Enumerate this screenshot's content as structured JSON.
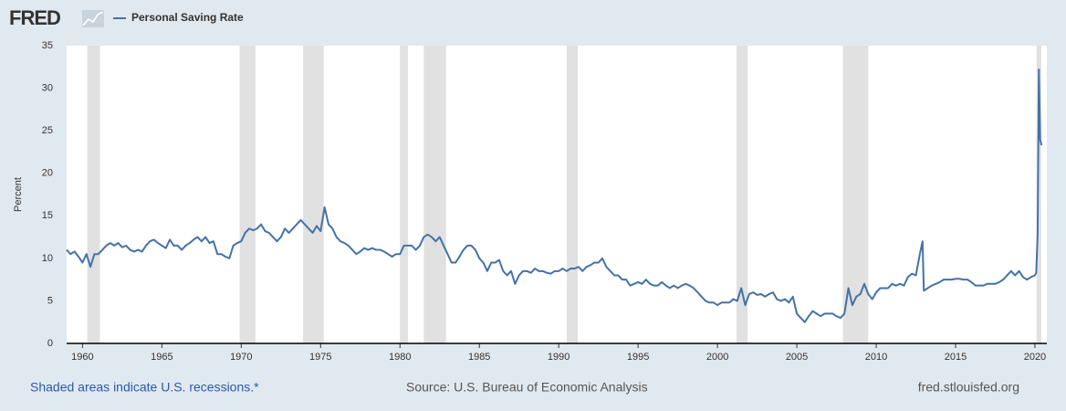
{
  "chart_data": {
    "type": "line",
    "logo": "FRED",
    "title": "Personal Saving Rate",
    "ylabel": "Percent",
    "footer_left": "Shaded areas indicate U.S. recessions.*",
    "footer_source": "Source: U.S. Bureau of Economic Analysis",
    "footer_right": "fred.stlouisfed.org",
    "xlim": [
      1959,
      2020.75
    ],
    "xticks": [
      1960,
      1965,
      1970,
      1975,
      1980,
      1985,
      1990,
      1995,
      2000,
      2005,
      2010,
      2015,
      2020
    ],
    "ylim": [
      0,
      35
    ],
    "yticks": [
      0,
      5,
      10,
      15,
      20,
      25,
      30,
      35
    ],
    "grid": false,
    "recession_color": "#e1e1e1",
    "recessions": [
      [
        1960.3,
        1961.1
      ],
      [
        1969.9,
        1970.9
      ],
      [
        1973.9,
        1975.2
      ],
      [
        1980.0,
        1980.5
      ],
      [
        1981.5,
        1982.9
      ],
      [
        1990.5,
        1991.2
      ],
      [
        2001.2,
        2001.9
      ],
      [
        2007.9,
        2009.5
      ],
      [
        2020.1,
        2020.4
      ]
    ],
    "series": [
      {
        "name": "Personal Saving Rate",
        "color": "#4572a7",
        "x": [
          1959,
          1959.25,
          1959.5,
          1959.75,
          1960,
          1960.25,
          1960.5,
          1960.75,
          1961,
          1961.25,
          1961.5,
          1961.75,
          1962,
          1962.25,
          1962.5,
          1962.75,
          1963,
          1963.25,
          1963.5,
          1963.75,
          1964,
          1964.25,
          1964.5,
          1964.75,
          1965,
          1965.25,
          1965.5,
          1965.75,
          1966,
          1966.25,
          1966.5,
          1966.75,
          1967,
          1967.25,
          1967.5,
          1967.75,
          1968,
          1968.25,
          1968.5,
          1968.75,
          1969,
          1969.25,
          1969.5,
          1969.75,
          1970,
          1970.25,
          1970.5,
          1970.75,
          1971,
          1971.25,
          1971.5,
          1971.75,
          1972,
          1972.25,
          1972.5,
          1972.75,
          1973,
          1973.25,
          1973.5,
          1973.75,
          1974,
          1974.25,
          1974.5,
          1974.75,
          1975,
          1975.25,
          1975.5,
          1975.75,
          1976,
          1976.25,
          1976.5,
          1976.75,
          1977,
          1977.25,
          1977.5,
          1977.75,
          1978,
          1978.25,
          1978.5,
          1978.75,
          1979,
          1979.25,
          1979.5,
          1979.75,
          1980,
          1980.25,
          1980.5,
          1980.75,
          1981,
          1981.25,
          1981.5,
          1981.75,
          1982,
          1982.25,
          1982.5,
          1982.75,
          1983,
          1983.25,
          1983.5,
          1983.75,
          1984,
          1984.25,
          1984.5,
          1984.75,
          1985,
          1985.25,
          1985.5,
          1985.75,
          1986,
          1986.25,
          1986.5,
          1986.75,
          1987,
          1987.25,
          1987.5,
          1987.75,
          1988,
          1988.25,
          1988.5,
          1988.75,
          1989,
          1989.25,
          1989.5,
          1989.75,
          1990,
          1990.25,
          1990.5,
          1990.75,
          1991,
          1991.25,
          1991.5,
          1991.75,
          1992,
          1992.25,
          1992.5,
          1992.75,
          1993,
          1993.25,
          1993.5,
          1993.75,
          1994,
          1994.25,
          1994.5,
          1994.75,
          1995,
          1995.25,
          1995.5,
          1995.75,
          1996,
          1996.25,
          1996.5,
          1996.75,
          1997,
          1997.25,
          1997.5,
          1997.75,
          1998,
          1998.25,
          1998.5,
          1998.75,
          1999,
          1999.25,
          1999.5,
          1999.75,
          2000,
          2000.25,
          2000.5,
          2000.75,
          2001,
          2001.25,
          2001.5,
          2001.75,
          2002,
          2002.25,
          2002.5,
          2002.75,
          2003,
          2003.25,
          2003.5,
          2003.75,
          2004,
          2004.25,
          2004.5,
          2004.75,
          2005,
          2005.25,
          2005.5,
          2005.75,
          2006,
          2006.25,
          2006.5,
          2006.75,
          2007,
          2007.25,
          2007.5,
          2007.75,
          2008,
          2008.25,
          2008.5,
          2008.75,
          2009,
          2009.25,
          2009.5,
          2009.75,
          2010,
          2010.25,
          2010.5,
          2010.75,
          2011,
          2011.25,
          2011.5,
          2011.75,
          2012,
          2012.25,
          2012.5,
          2012.75,
          2012.92,
          2013,
          2013.25,
          2013.5,
          2013.75,
          2014,
          2014.25,
          2014.5,
          2014.75,
          2015,
          2015.25,
          2015.5,
          2015.75,
          2016,
          2016.25,
          2016.5,
          2016.75,
          2017,
          2017.25,
          2017.5,
          2017.75,
          2018,
          2018.25,
          2018.5,
          2018.75,
          2019,
          2019.25,
          2019.5,
          2019.75,
          2020,
          2020.08,
          2020.17,
          2020.25,
          2020.33,
          2020.42
        ],
        "values": [
          11,
          10.5,
          10.8,
          10.2,
          9.5,
          10.5,
          9.0,
          10.5,
          10.5,
          11.0,
          11.5,
          11.8,
          11.5,
          11.8,
          11.3,
          11.5,
          11.0,
          10.8,
          11.0,
          10.8,
          11.5,
          12.0,
          12.2,
          11.8,
          11.5,
          11.2,
          12.2,
          11.5,
          11.5,
          11.0,
          11.5,
          11.8,
          12.2,
          12.5,
          12.0,
          12.5,
          11.8,
          12.0,
          10.5,
          10.5,
          10.2,
          10.0,
          11.5,
          11.8,
          12.0,
          13.0,
          13.5,
          13.3,
          13.5,
          14.0,
          13.2,
          13.0,
          12.5,
          12.0,
          12.5,
          13.5,
          13.0,
          13.5,
          14.0,
          14.5,
          14.0,
          13.5,
          13.0,
          13.8,
          13.2,
          16.0,
          14.0,
          13.5,
          12.5,
          12.0,
          11.8,
          11.5,
          11.0,
          10.5,
          10.8,
          11.2,
          11.0,
          11.2,
          11.0,
          11.0,
          10.8,
          10.5,
          10.2,
          10.5,
          10.5,
          11.5,
          11.5,
          11.5,
          11.0,
          11.5,
          12.5,
          12.8,
          12.5,
          12.0,
          12.5,
          11.5,
          10.5,
          9.5,
          9.5,
          10.2,
          11.0,
          11.5,
          11.5,
          11.0,
          10.0,
          9.5,
          8.5,
          9.5,
          9.5,
          9.8,
          8.5,
          8.0,
          8.5,
          7.0,
          8.0,
          8.5,
          8.5,
          8.3,
          8.8,
          8.5,
          8.5,
          8.3,
          8.2,
          8.5,
          8.5,
          8.8,
          8.5,
          8.8,
          8.8,
          9.0,
          8.5,
          9.0,
          9.2,
          9.5,
          9.5,
          10.0,
          9.0,
          8.5,
          8.0,
          8.0,
          7.5,
          7.5,
          6.8,
          7.0,
          7.2,
          7.0,
          7.5,
          7.0,
          6.8,
          6.8,
          7.2,
          6.8,
          6.5,
          6.8,
          6.5,
          6.8,
          7.0,
          6.8,
          6.5,
          6.0,
          5.5,
          5.0,
          4.8,
          4.8,
          4.5,
          4.8,
          4.8,
          4.8,
          5.2,
          5.0,
          6.5,
          4.5,
          5.8,
          6.0,
          5.7,
          5.8,
          5.5,
          5.8,
          6.0,
          5.2,
          5.0,
          5.2,
          4.8,
          5.5,
          3.5,
          3.0,
          2.5,
          3.2,
          3.8,
          3.5,
          3.2,
          3.5,
          3.5,
          3.5,
          3.2,
          3.0,
          3.5,
          6.5,
          4.5,
          5.5,
          5.8,
          7.0,
          5.8,
          5.2,
          6.0,
          6.5,
          6.5,
          6.5,
          7.0,
          6.8,
          7.0,
          6.8,
          7.8,
          8.2,
          8.0,
          10.5,
          12.0,
          6.2,
          6.5,
          6.8,
          7.0,
          7.2,
          7.5,
          7.5,
          7.5,
          7.6,
          7.6,
          7.5,
          7.5,
          7.2,
          6.8,
          6.8,
          6.8,
          7.0,
          7.0,
          7.0,
          7.2,
          7.5,
          8.0,
          8.5,
          8.0,
          8.5,
          7.8,
          7.5,
          7.8,
          8.0,
          8.3,
          12.8,
          32.2,
          24.0,
          23.3
        ]
      }
    ]
  }
}
